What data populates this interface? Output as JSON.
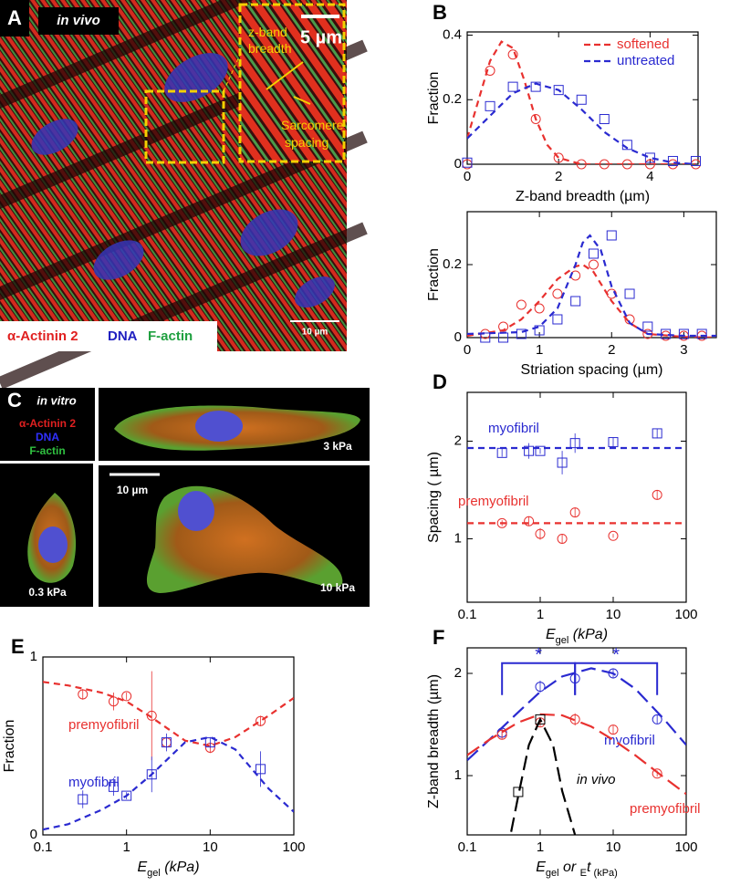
{
  "images": {
    "A": {
      "label": "A",
      "tag": "in vivo",
      "inset_scale": "5 µm",
      "annotations": [
        [
          "z-band",
          "breadth"
        ],
        [
          "Sarcomere",
          "spacing"
        ]
      ],
      "scale": "10 µm",
      "stains": [
        "α-Actinin 2",
        "DNA",
        "F-actin"
      ]
    },
    "C": {
      "label": "C",
      "tag": "in vitro",
      "stains": [
        "α-Actinin 2",
        "DNA",
        "F-actin"
      ],
      "scale": "10 µm",
      "stiffness": [
        "3 kPa",
        "0.3 kPa",
        "10 kPa"
      ]
    }
  },
  "chart_data": [
    {
      "type": "scatter",
      "label": "B",
      "xlabel": [
        "Z-band breadth (µm)"
      ],
      "ylabel": "Fraction",
      "xlim": [
        0,
        5.05
      ],
      "ylim": [
        0,
        0.41
      ],
      "xticks": [
        0,
        2,
        4
      ],
      "yticks": [
        0,
        0.2,
        0.4
      ],
      "legend": "upper right",
      "x": [
        0,
        0.5,
        1,
        1.5,
        2,
        2.5,
        3,
        3.5,
        4,
        4.5,
        5
      ],
      "series": [
        {
          "name": "softened",
          "color": "#e8312f",
          "marker": "circle",
          "values": [
            0,
            0.29,
            0.34,
            0.14,
            0.02,
            0,
            0,
            0,
            0,
            0,
            0
          ],
          "fit": {
            "x": [
              0,
              0.25,
              0.5,
              0.75,
              1,
              1.25,
              1.5,
              1.75,
              2,
              2.5,
              3,
              5
            ],
            "values": [
              0.08,
              0.2,
              0.32,
              0.38,
              0.36,
              0.26,
              0.14,
              0.06,
              0.02,
              0,
              0,
              0
            ]
          }
        },
        {
          "name": "untreated",
          "color": "#2a2ad0",
          "marker": "square",
          "values": [
            0.005,
            0.18,
            0.24,
            0.24,
            0.23,
            0.2,
            0.14,
            0.06,
            0.02,
            0.01,
            0.01
          ],
          "fit": {
            "x": [
              0,
              0.5,
              1,
              1.5,
              2,
              2.5,
              3,
              3.5,
              4,
              4.5,
              5
            ],
            "values": [
              0.08,
              0.15,
              0.22,
              0.25,
              0.23,
              0.17,
              0.1,
              0.05,
              0.02,
              0.005,
              0
            ]
          }
        }
      ]
    },
    {
      "type": "scatter",
      "xlabel": [
        "Striation spacing (µm)"
      ],
      "ylabel": "Fraction",
      "xlim": [
        0,
        3.45
      ],
      "ylim": [
        0,
        0.345
      ],
      "xticks": [
        0,
        1,
        2,
        3
      ],
      "yticks": [
        0,
        0.2
      ],
      "x": [
        0.25,
        0.5,
        0.75,
        1,
        1.25,
        1.5,
        1.75,
        2,
        2.25,
        2.5,
        2.75,
        3,
        3.25
      ],
      "series": [
        {
          "name": "softened",
          "color": "#e8312f",
          "marker": "circle",
          "values": [
            0.01,
            0.03,
            0.09,
            0.08,
            0.12,
            0.17,
            0.2,
            0.12,
            0.05,
            0.01,
            0.005,
            0.005,
            0.005
          ],
          "fit": {
            "x": [
              0,
              0.5,
              0.75,
              1,
              1.25,
              1.5,
              1.6,
              1.75,
              2,
              2.25,
              2.5,
              3,
              3.45
            ],
            "values": [
              0.005,
              0.02,
              0.05,
              0.1,
              0.16,
              0.195,
              0.2,
              0.18,
              0.1,
              0.04,
              0.01,
              0.002,
              0
            ]
          }
        },
        {
          "name": "untreated",
          "color": "#2a2ad0",
          "marker": "square",
          "values": [
            0,
            0,
            0.01,
            0.02,
            0.05,
            0.1,
            0.23,
            0.28,
            0.12,
            0.03,
            0.01,
            0.01,
            0.01
          ],
          "fit": {
            "x": [
              0,
              0.75,
              1,
              1.25,
              1.5,
              1.6,
              1.7,
              1.85,
              2,
              2.25,
              2.5,
              3,
              3.45
            ],
            "values": [
              0.01,
              0.015,
              0.03,
              0.08,
              0.2,
              0.26,
              0.28,
              0.24,
              0.14,
              0.04,
              0.01,
              0.005,
              0.005
            ]
          }
        }
      ]
    },
    {
      "type": "scatter",
      "label": "D",
      "xlabel": [
        "E",
        "gel",
        " (kPa)"
      ],
      "ylabel": "Spacing ( µm)",
      "xscale": "log",
      "xlim": [
        0.1,
        100
      ],
      "ylim": [
        0.35,
        2.5
      ],
      "xticks": [
        0.1,
        1,
        10,
        100
      ],
      "yticks": [
        1,
        2
      ],
      "legend": "inline",
      "x": [
        0.3,
        0.7,
        1,
        2,
        3,
        10,
        40
      ],
      "series": [
        {
          "name": "myofibril",
          "color": "#2a2ad0",
          "marker": "square",
          "values": [
            1.88,
            1.9,
            1.9,
            1.78,
            1.98,
            1.99,
            2.08
          ],
          "errors": [
            0.04,
            0.08,
            0.03,
            0.12,
            0.1,
            0.05,
            0.05
          ],
          "fit": {
            "x": [
              0.1,
              100
            ],
            "values": [
              1.93,
              1.93
            ]
          }
        },
        {
          "name": "premyofibril",
          "color": "#e8312f",
          "marker": "circle",
          "values": [
            1.16,
            1.18,
            1.05,
            1.0,
            1.27,
            1.03,
            1.45
          ],
          "errors": [
            0.03,
            0.05,
            0.06,
            0.05,
            0.05,
            0.02,
            0.05
          ],
          "fit": {
            "x": [
              0.1,
              100
            ],
            "values": [
              1.16,
              1.16
            ]
          }
        }
      ]
    },
    {
      "type": "scatter",
      "label": "E",
      "xlabel": [
        "E",
        "gel",
        " (kPa)"
      ],
      "ylabel": "Fraction",
      "xscale": "log",
      "xlim": [
        0.1,
        100
      ],
      "ylim": [
        0,
        1
      ],
      "xticks": [
        0.1,
        1,
        10,
        100
      ],
      "yticks": [
        0,
        1
      ],
      "legend": "inline",
      "x": [
        0.3,
        0.7,
        1,
        2,
        3,
        10,
        40
      ],
      "series": [
        {
          "name": "premyofibril",
          "color": "#e8312f",
          "marker": "circle",
          "values": [
            0.79,
            0.75,
            0.78,
            0.67,
            0.52,
            0.49,
            0.64
          ],
          "errors": [
            0.03,
            0.05,
            0.02,
            0.25,
            0.03,
            0.03,
            0.03
          ],
          "fit": {
            "x": [
              0.1,
              0.2,
              0.5,
              1,
              2,
              5,
              10,
              20,
              50,
              100
            ],
            "values": [
              0.86,
              0.84,
              0.8,
              0.75,
              0.66,
              0.53,
              0.5,
              0.55,
              0.67,
              0.77
            ]
          }
        },
        {
          "name": "myofibril",
          "color": "#2a2ad0",
          "marker": "square",
          "values": [
            0.2,
            0.27,
            0.22,
            0.34,
            0.52,
            0.52,
            0.37
          ],
          "errors": [
            0.05,
            0.05,
            0.02,
            0.1,
            0.05,
            0.03,
            0.1
          ],
          "fit": {
            "x": [
              0.1,
              0.2,
              0.5,
              1,
              2,
              5,
              10,
              20,
              50,
              100
            ],
            "values": [
              0.03,
              0.06,
              0.14,
              0.22,
              0.34,
              0.52,
              0.55,
              0.48,
              0.26,
              0.13
            ]
          }
        }
      ]
    },
    {
      "type": "scatter",
      "label": "F",
      "xlabel": [
        "E",
        "gel",
        " or ",
        "E",
        "t",
        " (kPa)"
      ],
      "ylabel": "Z-band breadth (µm)",
      "xscale": "log",
      "xlim": [
        0.1,
        100
      ],
      "ylim": [
        0.42,
        2.25
      ],
      "xticks": [
        0.1,
        1,
        10,
        100
      ],
      "yticks": [
        1,
        2
      ],
      "legend": "inline",
      "dash": "long",
      "series": [
        {
          "name": "myofibril",
          "color": "#2a2ad0",
          "marker": "circle",
          "x": [
            0.3,
            1,
            3,
            10,
            40
          ],
          "values": [
            1.42,
            1.87,
            1.95,
            2.0,
            1.55
          ],
          "errors": [
            0.05,
            0.06,
            0.08,
            0.05,
            0.04
          ],
          "fit": {
            "x": [
              0.1,
              0.2,
              0.5,
              1,
              2,
              5,
              10,
              20,
              50,
              100
            ],
            "values": [
              1.15,
              1.35,
              1.62,
              1.82,
              1.97,
              2.05,
              2.0,
              1.85,
              1.55,
              1.3
            ]
          }
        },
        {
          "name": "premyofibril",
          "color": "#e8312f",
          "marker": "circle",
          "x": [
            0.3,
            1,
            3,
            10,
            40
          ],
          "values": [
            1.4,
            1.52,
            1.55,
            1.45,
            1.02
          ],
          "errors": [
            0.04,
            0.04,
            0.06,
            0.04,
            0.03
          ],
          "fit": {
            "x": [
              0.1,
              0.2,
              0.5,
              1,
              2,
              5,
              10,
              20,
              50,
              100
            ],
            "values": [
              1.2,
              1.35,
              1.52,
              1.6,
              1.59,
              1.48,
              1.35,
              1.2,
              0.98,
              0.82
            ]
          }
        },
        {
          "name": "in vivo",
          "color": "#000000",
          "marker": "square",
          "x": [
            0.5,
            1
          ],
          "values": [
            0.84,
            1.55
          ],
          "fit": {
            "x": [
              0.4,
              0.5,
              0.7,
              1,
              1.5,
              2,
              3
            ],
            "values": [
              0.45,
              0.8,
              1.3,
              1.55,
              1.3,
              0.85,
              0.42
            ]
          }
        }
      ],
      "brackets": [
        {
          "x": [
            0.3,
            3
          ],
          "y": 2.1,
          "label": "*"
        },
        {
          "x": [
            3,
            40
          ],
          "y": 2.1,
          "label": "*"
        }
      ]
    }
  ]
}
